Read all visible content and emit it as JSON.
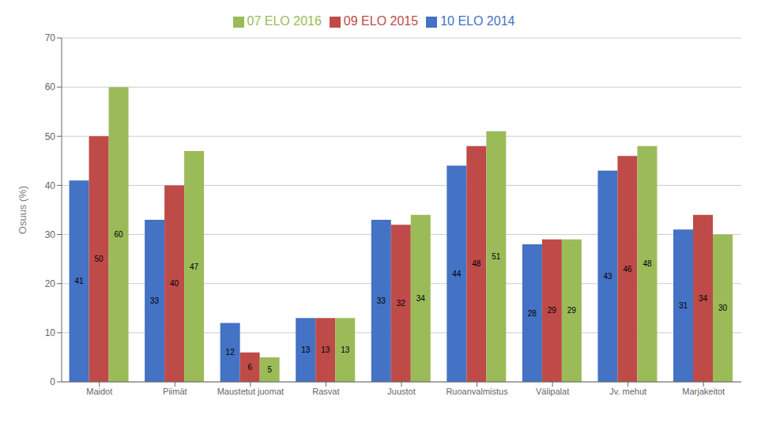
{
  "chart_data": {
    "type": "bar",
    "categories": [
      "Maidot",
      "Piimät",
      "Maustetut juomat",
      "Rasvat",
      "Juustot",
      "Ruoanvalmistus",
      "Välipalat",
      "Jv. mehut",
      "Marjakeitot"
    ],
    "series": [
      {
        "name": "10 ELO 2014",
        "color": "#4472C4",
        "values": [
          41,
          33,
          12,
          13,
          33,
          44,
          28,
          43,
          31
        ]
      },
      {
        "name": "09 ELO 2015",
        "color": "#BE4B48",
        "values": [
          50,
          40,
          6,
          13,
          32,
          48,
          29,
          46,
          34
        ]
      },
      {
        "name": "07 ELO 2016",
        "color": "#9BBB59",
        "values": [
          60,
          47,
          5,
          13,
          34,
          51,
          29,
          48,
          30
        ]
      }
    ],
    "y_label": "Osuus (%)",
    "ylim": [
      0,
      70
    ],
    "yticks": [
      0,
      10,
      20,
      30,
      40,
      50,
      60,
      70
    ],
    "grid": true,
    "legend": "top",
    "data_labels": true
  }
}
